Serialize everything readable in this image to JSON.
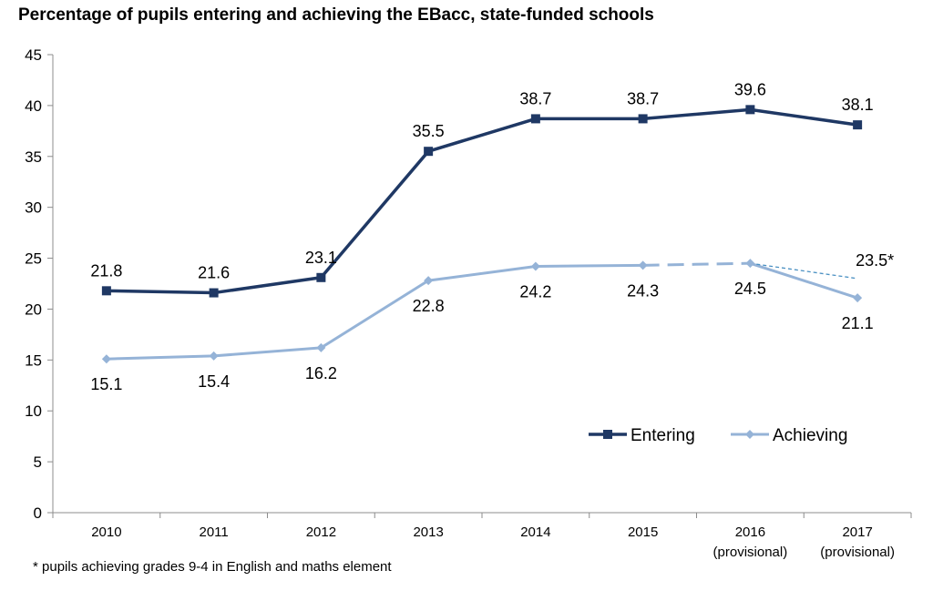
{
  "chart_data": {
    "type": "line",
    "title": "Percentage of pupils entering and achieving the EBacc, state-funded schools",
    "xlabel": "",
    "ylabel": "",
    "ylim": [
      0,
      45
    ],
    "yticks": [
      "0",
      "5",
      "10",
      "15",
      "20",
      "25",
      "30",
      "35",
      "40",
      "45"
    ],
    "categories": [
      "2010",
      "2011",
      "2012",
      "2013",
      "2014",
      "2015",
      "2016",
      "2017"
    ],
    "category_sublabels": [
      "",
      "",
      "",
      "",
      "",
      "",
      "(provisional)",
      "(provisional)"
    ],
    "grid": false,
    "legend_position": "center-right",
    "series": [
      {
        "name": "Entering",
        "color": "#1f3864",
        "marker": "square",
        "values": [
          21.8,
          21.6,
          23.1,
          35.5,
          38.7,
          38.7,
          39.6,
          38.1
        ],
        "labels": [
          "21.8",
          "21.6",
          "23.1",
          "35.5",
          "38.7",
          "38.7",
          "39.6",
          "38.1"
        ]
      },
      {
        "name": "Achieving",
        "color": "#95b3d7",
        "marker": "diamond",
        "values": [
          15.1,
          15.4,
          16.2,
          22.8,
          24.2,
          24.3,
          24.5,
          21.1
        ],
        "labels": [
          "15.1",
          "15.4",
          "16.2",
          "22.8",
          "24.2",
          "24.3",
          "24.5",
          "21.1"
        ],
        "dashed_segment": [
          "2015",
          "2016"
        ]
      }
    ],
    "annotations": [
      {
        "text": "23.5*",
        "style": "thin dashed line",
        "color": "#4a90c2",
        "from": {
          "x": "2016",
          "y": 24.5
        },
        "to": {
          "x": "2017",
          "y": 23.0
        }
      }
    ],
    "footnote": "* pupils achieving grades 9-4 in English and maths element"
  }
}
